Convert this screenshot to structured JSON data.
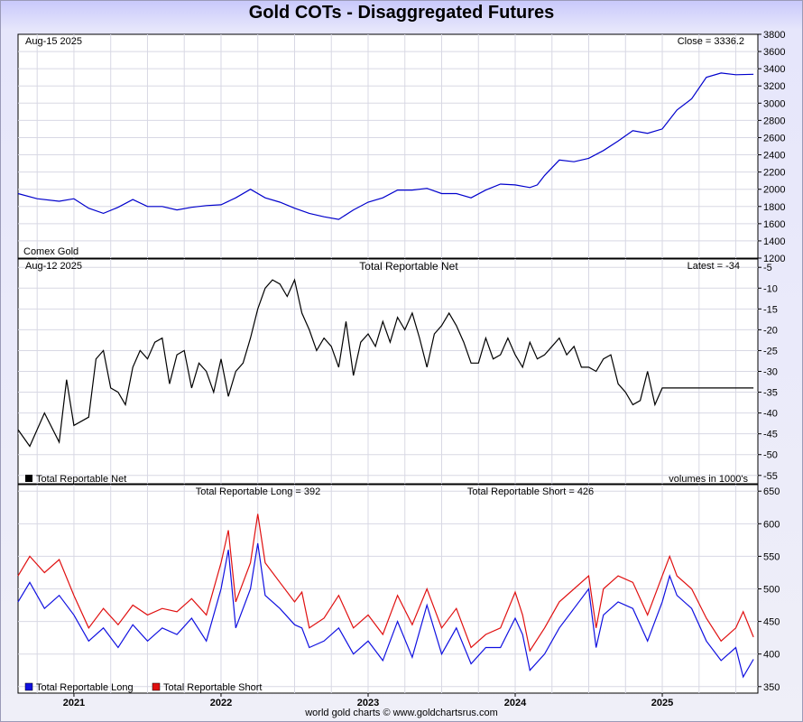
{
  "title": "Gold COTs - Disaggregated Futures",
  "footer": "world gold charts © www.goldchartsrus.com",
  "colors": {
    "price": "#0000cc",
    "net": "#000000",
    "long": "#1010e0",
    "short": "#e01010",
    "grid": "#d8d8e4"
  },
  "chart_data": [
    {
      "type": "line",
      "panel": "price",
      "date_label": "Aug-15  2025",
      "readout": "Close = 3336.2",
      "bottom_label": "Comex Gold",
      "ylim": [
        1200,
        3800
      ],
      "yticks": [
        1200,
        1400,
        1600,
        1800,
        2000,
        2200,
        2400,
        2600,
        2800,
        3000,
        3200,
        3400,
        3600,
        3800
      ],
      "series": [
        {
          "x": [
            2020.6,
            2020.75,
            2020.9,
            2021.0,
            2021.1,
            2021.2,
            2021.3,
            2021.4,
            2021.5,
            2021.6,
            2021.7,
            2021.8,
            2021.9,
            2022.0,
            2022.1,
            2022.2,
            2022.3,
            2022.4,
            2022.5,
            2022.6,
            2022.7,
            2022.8,
            2022.9,
            2023.0,
            2023.1,
            2023.2,
            2023.3,
            2023.4,
            2023.5,
            2023.6,
            2023.7,
            2023.8,
            2023.9,
            2024.0,
            2024.1,
            2024.15,
            2024.2,
            2024.3,
            2024.4,
            2024.5,
            2024.6,
            2024.7,
            2024.8,
            2024.9,
            2025.0,
            2025.1,
            2025.2,
            2025.3,
            2025.4,
            2025.5,
            2025.62
          ],
          "y": [
            1950,
            1890,
            1860,
            1890,
            1780,
            1720,
            1790,
            1880,
            1800,
            1800,
            1760,
            1790,
            1810,
            1820,
            1900,
            2000,
            1900,
            1850,
            1780,
            1720,
            1680,
            1650,
            1760,
            1850,
            1900,
            1990,
            1990,
            2010,
            1950,
            1950,
            1900,
            1990,
            2060,
            2050,
            2020,
            2050,
            2160,
            2340,
            2320,
            2360,
            2450,
            2560,
            2680,
            2650,
            2700,
            2920,
            3050,
            3300,
            3350,
            3330,
            3336
          ]
        }
      ]
    },
    {
      "type": "line",
      "panel": "net",
      "date_label": "Aug-12  2025",
      "title": "Total Reportable Net",
      "readout": "Latest = -34",
      "ylim": [
        -57,
        -3
      ],
      "yticks": [
        -5,
        -10,
        -15,
        -20,
        -25,
        -30,
        -35,
        -40,
        -45,
        -50,
        -55
      ],
      "legend": [
        "Total Reportable Net"
      ],
      "note": "volumes in 1000's",
      "series": [
        {
          "name": "Total Reportable Net",
          "x": [
            2020.6,
            2020.7,
            2020.8,
            2020.9,
            2020.95,
            2021.0,
            2021.1,
            2021.15,
            2021.2,
            2021.25,
            2021.3,
            2021.35,
            2021.4,
            2021.45,
            2021.5,
            2021.55,
            2021.6,
            2021.65,
            2021.7,
            2021.75,
            2021.8,
            2021.85,
            2021.9,
            2021.95,
            2022.0,
            2022.05,
            2022.1,
            2022.15,
            2022.2,
            2022.25,
            2022.3,
            2022.35,
            2022.4,
            2022.45,
            2022.5,
            2022.55,
            2022.6,
            2022.65,
            2022.7,
            2022.75,
            2022.8,
            2022.85,
            2022.9,
            2022.95,
            2023.0,
            2023.05,
            2023.1,
            2023.15,
            2023.2,
            2023.25,
            2023.3,
            2023.35,
            2023.4,
            2023.45,
            2023.5,
            2023.55,
            2023.6,
            2023.65,
            2023.7,
            2023.75,
            2023.8,
            2023.85,
            2023.9,
            2023.95,
            2024.0,
            2024.05,
            2024.1,
            2024.15,
            2024.2,
            2024.25,
            2024.3,
            2024.35,
            2024.4,
            2024.45,
            2024.5,
            2024.55,
            2024.6,
            2024.65,
            2024.7,
            2024.75,
            2024.8,
            2024.85,
            2024.9,
            2024.95,
            2025.0,
            2025.05,
            2025.1,
            2025.15,
            2025.2,
            2025.25,
            2025.3,
            2025.35,
            2025.4,
            2025.45,
            2025.5,
            2025.55,
            2025.6,
            2025.62
          ],
          "y": [
            -44,
            -48,
            -40,
            -47,
            -32,
            -43,
            -41,
            -27,
            -25,
            -34,
            -35,
            -38,
            -29,
            -25,
            -27,
            -23,
            -22,
            -33,
            -26,
            -25,
            -34,
            -28,
            -30,
            -35,
            -27,
            -36,
            -30,
            -28,
            -22,
            -15,
            -10,
            -8,
            -9,
            -12,
            -8,
            -16,
            -20,
            -25,
            -22,
            -24,
            -29,
            -18,
            -31,
            -23,
            -21,
            -24,
            -18,
            -23,
            -17,
            -20,
            -16,
            -22,
            -29,
            -21,
            -19,
            -16,
            -19,
            -23,
            -28,
            -28,
            -22,
            -27,
            -26,
            -22,
            -26,
            -29,
            -23,
            -27,
            -26,
            -24,
            -22,
            -26,
            -24,
            -29,
            -29,
            -30,
            -27,
            -26,
            -33,
            -35,
            -38,
            -37,
            -30,
            -38,
            -34,
            -34,
            -34,
            -34,
            -34,
            -34,
            -34,
            -34,
            -34,
            -34,
            -34,
            -34,
            -34,
            -34
          ]
        }
      ]
    },
    {
      "type": "line",
      "panel": "long-short",
      "title_left": "Total Reportable Long = 392",
      "title_right": "Total Reportable Short = 426",
      "ylim": [
        340,
        660
      ],
      "yticks": [
        350,
        400,
        450,
        500,
        550,
        600,
        650
      ],
      "legend": [
        "Total Reportable Long",
        "Total Reportable Short"
      ],
      "x_categories": [
        "2021",
        "2022",
        "2023",
        "2024",
        "2025"
      ],
      "x_tick_values": [
        2021,
        2022,
        2023,
        2024,
        2025
      ],
      "xlim": [
        2020.62,
        2025.65
      ],
      "series": [
        {
          "name": "Total Reportable Long",
          "x": [
            2020.6,
            2020.7,
            2020.8,
            2020.9,
            2021.0,
            2021.1,
            2021.2,
            2021.3,
            2021.4,
            2021.5,
            2021.6,
            2021.7,
            2021.8,
            2021.9,
            2022.0,
            2022.05,
            2022.1,
            2022.2,
            2022.25,
            2022.3,
            2022.4,
            2022.5,
            2022.55,
            2022.6,
            2022.7,
            2022.8,
            2022.9,
            2023.0,
            2023.1,
            2023.2,
            2023.3,
            2023.4,
            2023.5,
            2023.6,
            2023.7,
            2023.8,
            2023.9,
            2024.0,
            2024.05,
            2024.1,
            2024.2,
            2024.3,
            2024.4,
            2024.5,
            2024.55,
            2024.6,
            2024.7,
            2024.8,
            2024.9,
            2025.0,
            2025.05,
            2025.1,
            2025.2,
            2025.3,
            2025.4,
            2025.5,
            2025.55,
            2025.62
          ],
          "y": [
            480,
            510,
            470,
            490,
            460,
            420,
            440,
            410,
            445,
            420,
            440,
            430,
            455,
            420,
            500,
            560,
            440,
            500,
            570,
            490,
            470,
            445,
            440,
            410,
            420,
            440,
            400,
            420,
            390,
            450,
            395,
            475,
            400,
            440,
            385,
            410,
            410,
            455,
            430,
            375,
            400,
            440,
            470,
            500,
            410,
            460,
            480,
            470,
            420,
            480,
            520,
            490,
            470,
            420,
            390,
            410,
            365,
            392
          ]
        },
        {
          "name": "Total Reportable Short",
          "x": [
            2020.6,
            2020.7,
            2020.8,
            2020.9,
            2021.0,
            2021.1,
            2021.2,
            2021.3,
            2021.4,
            2021.5,
            2021.6,
            2021.7,
            2021.8,
            2021.9,
            2022.0,
            2022.05,
            2022.1,
            2022.2,
            2022.25,
            2022.3,
            2022.4,
            2022.5,
            2022.55,
            2022.6,
            2022.7,
            2022.8,
            2022.9,
            2023.0,
            2023.1,
            2023.2,
            2023.3,
            2023.4,
            2023.5,
            2023.6,
            2023.7,
            2023.8,
            2023.9,
            2024.0,
            2024.05,
            2024.1,
            2024.2,
            2024.3,
            2024.4,
            2024.5,
            2024.55,
            2024.6,
            2024.7,
            2024.8,
            2024.9,
            2025.0,
            2025.05,
            2025.1,
            2025.2,
            2025.3,
            2025.4,
            2025.5,
            2025.55,
            2025.62
          ],
          "y": [
            520,
            550,
            525,
            545,
            490,
            440,
            470,
            445,
            475,
            460,
            470,
            465,
            485,
            460,
            540,
            590,
            480,
            540,
            615,
            540,
            510,
            480,
            495,
            440,
            455,
            490,
            440,
            460,
            430,
            490,
            445,
            500,
            440,
            470,
            410,
            430,
            440,
            495,
            460,
            405,
            440,
            480,
            500,
            520,
            440,
            500,
            520,
            510,
            460,
            520,
            550,
            520,
            500,
            455,
            420,
            440,
            465,
            426
          ]
        }
      ]
    }
  ]
}
